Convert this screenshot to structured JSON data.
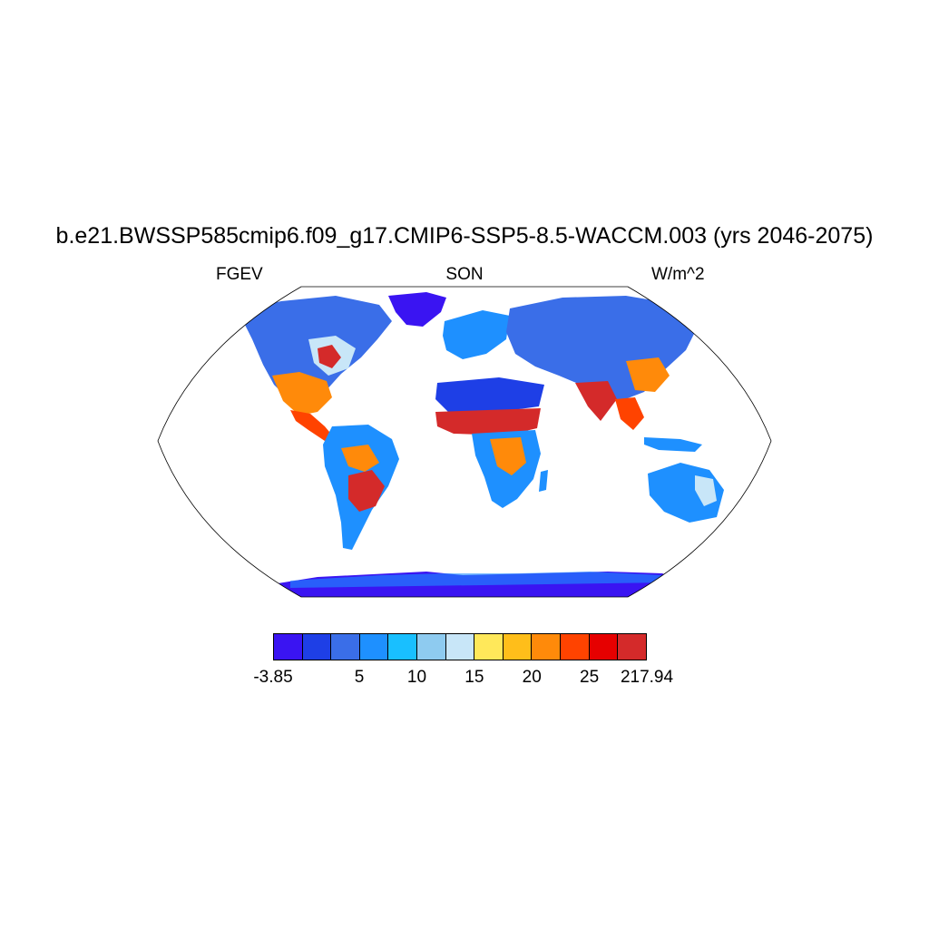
{
  "title": "b.e21.BWSSP585cmip6.f09_g17.CMIP6-SSP5-8.5-WACCM.003 (yrs 2046-2075)",
  "variable": "FGEV",
  "season": "SON",
  "units": "W/m^2",
  "colorbar": {
    "colors": [
      "#3a14f2",
      "#1e3fe6",
      "#3a6ee8",
      "#1e90ff",
      "#19bfff",
      "#8ecbf0",
      "#c8e6f8",
      "#ffe85a",
      "#ffbe1a",
      "#ff8a0a",
      "#ff4300",
      "#e60000",
      "#d42a2a"
    ],
    "labels": [
      "-3.85",
      "5",
      "10",
      "15",
      "20",
      "25",
      "217.94"
    ]
  }
}
